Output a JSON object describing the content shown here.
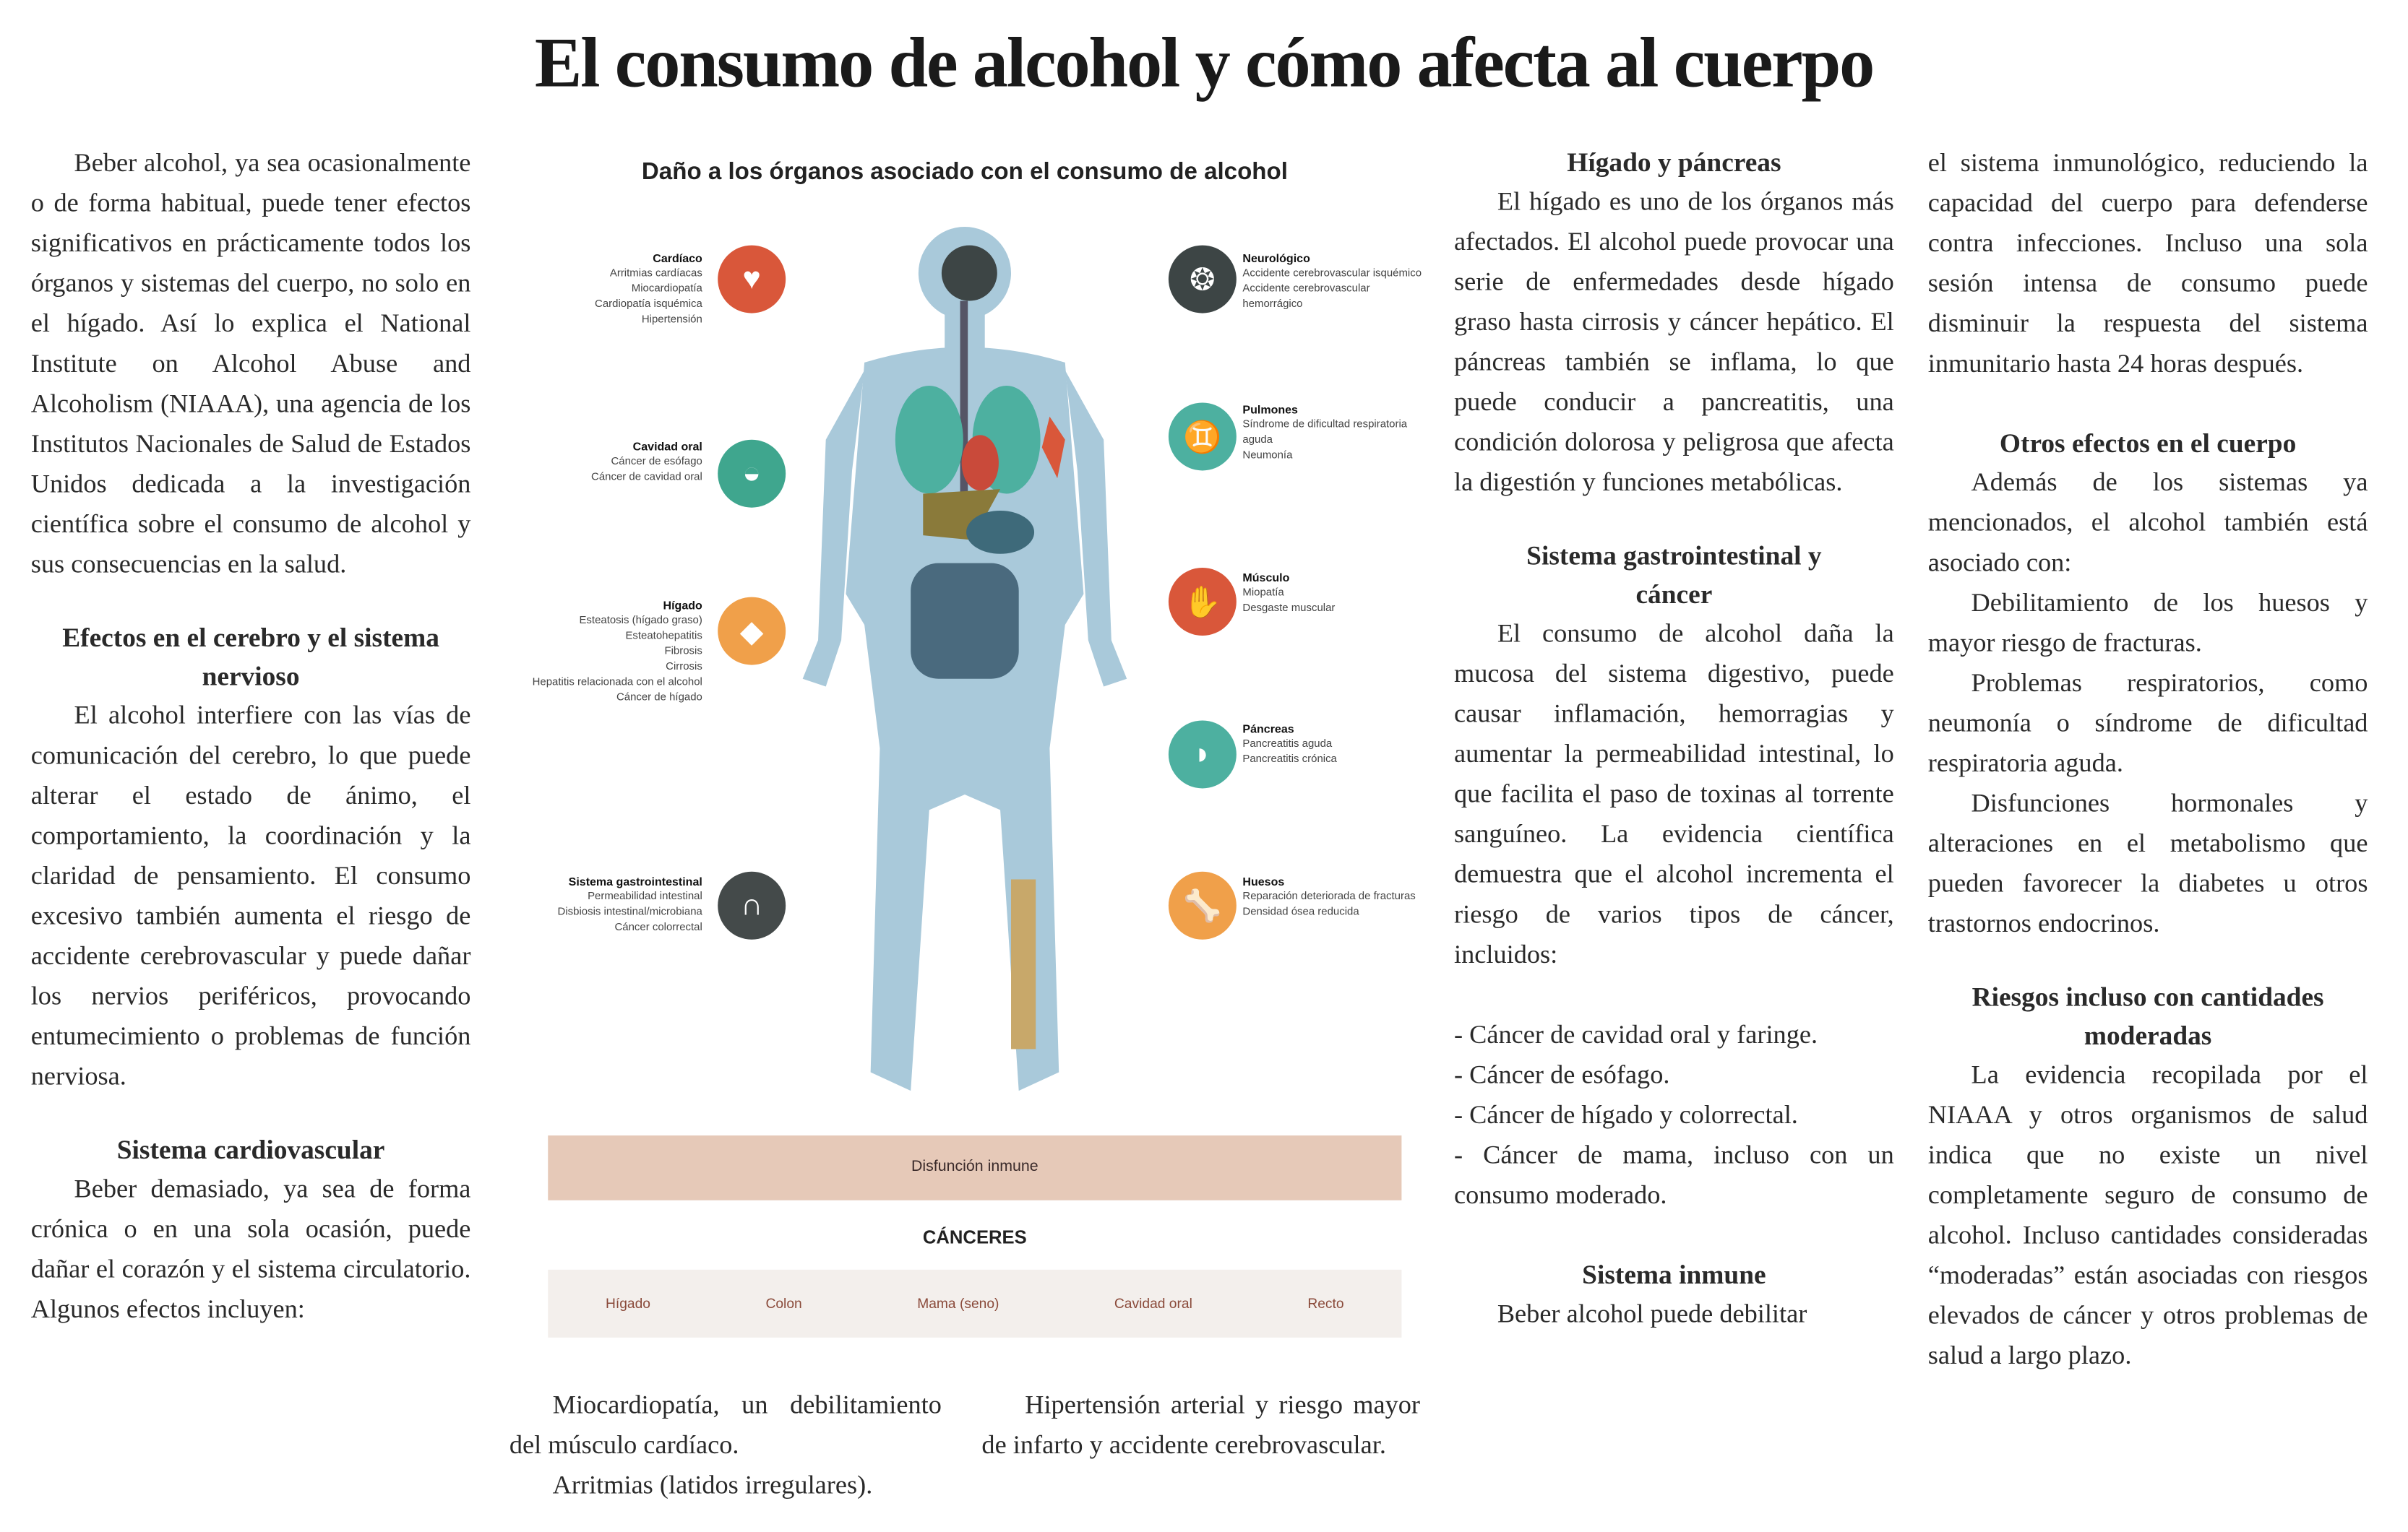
{
  "title": "El consumo de alcohol y cómo afecta al cuerpo",
  "col1": {
    "intro": "Beber alcohol, ya sea ocasionalmente o de forma habitual, puede tener efectos significativos en prácticamente todos los órganos y sistemas del cuerpo, no solo en el hígado. Así lo explica el National Institute on Alcohol Abuse and Alcoholism (NIAAA), una agencia de los Institutos Nacionales de Salud de Estados Unidos dedicada a la investigación científica sobre el consumo de alcohol y sus consecuencias en la salud.",
    "h_brain": "Efectos en el cerebro y el sistema nervioso",
    "brain": "El alcohol interfiere con las vías de comunicación del cerebro, lo que puede alterar el estado de ánimo, el comportamiento, la coordinación y la claridad de pensamiento. El consumo excesivo también aumenta el riesgo de accidente cerebrovascular y puede dañar los nervios periféricos, provocando entumecimiento o problemas de función nerviosa.",
    "h_cardio": "Sistema cardiovascular",
    "cardio": "Beber demasiado, ya sea de forma crónica o en una sola ocasión, puede dañar el corazón y el sistema circulatorio. Algunos efectos incluyen:"
  },
  "under": {
    "a1": "Miocardiopatía, un debilitamiento del músculo cardíaco.",
    "a2": "Arritmias (latidos irregulares).",
    "b1": "Hipertensión arterial y riesgo mayor de infarto y accidente cerebrovascular."
  },
  "infographic": {
    "title": "Daño a los órganos asociado con el consumo de alcohol",
    "left": [
      {
        "name": "Cardíaco",
        "items": [
          "Arritmias cardíacas",
          "Miocardiopatía",
          "Cardiopatía isquémica",
          "Hipertensión"
        ],
        "color": "#d9573a",
        "icon": "heart-icon"
      },
      {
        "name": "Cavidad oral",
        "items": [
          "Cáncer de esófago",
          "Cáncer de cavidad oral"
        ],
        "color": "#3fa68e",
        "icon": "mouth-icon"
      },
      {
        "name": "Hígado",
        "items": [
          "Esteatosis (hígado graso)",
          "Esteatohepatitis",
          "Fibrosis",
          "Cirrosis",
          "Hepatitis relacionada con el alcohol",
          "Cáncer de hígado"
        ],
        "color": "#f0a04a",
        "icon": "liver-icon"
      },
      {
        "name": "Sistema gastrointestinal",
        "items": [
          "Permeabilidad intestinal",
          "Disbiosis intestinal/microbiana",
          "Cáncer colorrectal"
        ],
        "color": "#444a4a",
        "icon": "intestine-icon"
      }
    ],
    "right": [
      {
        "name": "Neurológico",
        "items": [
          "Accidente cerebrovascular isquémico",
          "Accidente cerebrovascular hemorrágico"
        ],
        "color": "#3d4545",
        "icon": "brain-icon"
      },
      {
        "name": "Pulmones",
        "items": [
          "Síndrome de dificultad respiratoria aguda",
          "Neumonía"
        ],
        "color": "#4db0a0",
        "icon": "lungs-icon"
      },
      {
        "name": "Músculo",
        "items": [
          "Miopatía",
          "Desgaste muscular"
        ],
        "color": "#d9573a",
        "icon": "muscle-icon"
      },
      {
        "name": "Páncreas",
        "items": [
          "Pancreatitis aguda",
          "Pancreatitis crónica"
        ],
        "color": "#4db0a0",
        "icon": "pancreas-icon"
      },
      {
        "name": "Huesos",
        "items": [
          "Reparación deteriorada de fracturas",
          "Densidad ósea reducida"
        ],
        "color": "#f0a04a",
        "icon": "bone-icon"
      }
    ],
    "immune": "Disfunción inmune",
    "cancers_title": "CÁNCERES",
    "cancers": [
      "Hígado",
      "Colon",
      "Mama (seno)",
      "Cavidad oral",
      "Recto"
    ]
  },
  "col3": {
    "h_liver": "Hígado y páncreas",
    "liver": "El hígado es uno de los órganos más afectados. El alcohol puede provocar una serie de enfermedades desde hígado graso hasta cirrosis y cáncer hepático. El páncreas también se inflama, lo que puede conducir a pancreatitis, una condición dolorosa y peligrosa que afecta la digestión y funciones metabólicas.",
    "h_gi": "Sistema gastrointestinal y cáncer",
    "gi": "El consumo de alcohol daña la mucosa del sistema digestivo, puede causar inflamación, hemorragias y aumentar la permeabilidad intestinal, lo que facilita el paso de toxinas al torrente sanguíneo. La evidencia científica demuestra que el alcohol incrementa el riesgo de varios tipos de cáncer, incluidos:",
    "list": [
      "- Cáncer de cavidad oral y faringe.",
      "- Cáncer de esófago.",
      "- Cáncer de hígado y colorrectal.",
      "- Cáncer de mama, incluso con un consumo moderado."
    ],
    "h_imm": "Sistema inmune",
    "imm": "Beber alcohol puede debilitar"
  },
  "col4": {
    "imm_cont": "el sistema inmunológico, reduciendo la capacidad del cuerpo para defenderse contra infecciones. Incluso una sola sesión intensa de consumo puede disminuir la respuesta del sistema inmunitario hasta 24 horas después.",
    "h_other": "Otros efectos en el cuerpo",
    "other": "Además de los sistemas ya mencionados, el alcohol también está asociado con:",
    "o1": "Debilitamiento de los huesos y mayor riesgo de fracturas.",
    "o2": "Problemas respiratorios, como neumonía o síndrome de dificultad respiratoria aguda.",
    "o3": "Disfunciones hormonales y alteraciones en el metabolismo que pueden favorecer la diabetes u otros trastornos endocrinos.",
    "h_risk": "Riesgos incluso con cantidades moderadas",
    "risk": "La evidencia recopilada por el NIAAA y otros organismos de salud indica que no existe un nivel completamente seguro de consumo de alcohol. Incluso cantidades consideradas “moderadas” están asociadas con riesgos elevados de cáncer y otros problemas de salud a largo plazo."
  }
}
